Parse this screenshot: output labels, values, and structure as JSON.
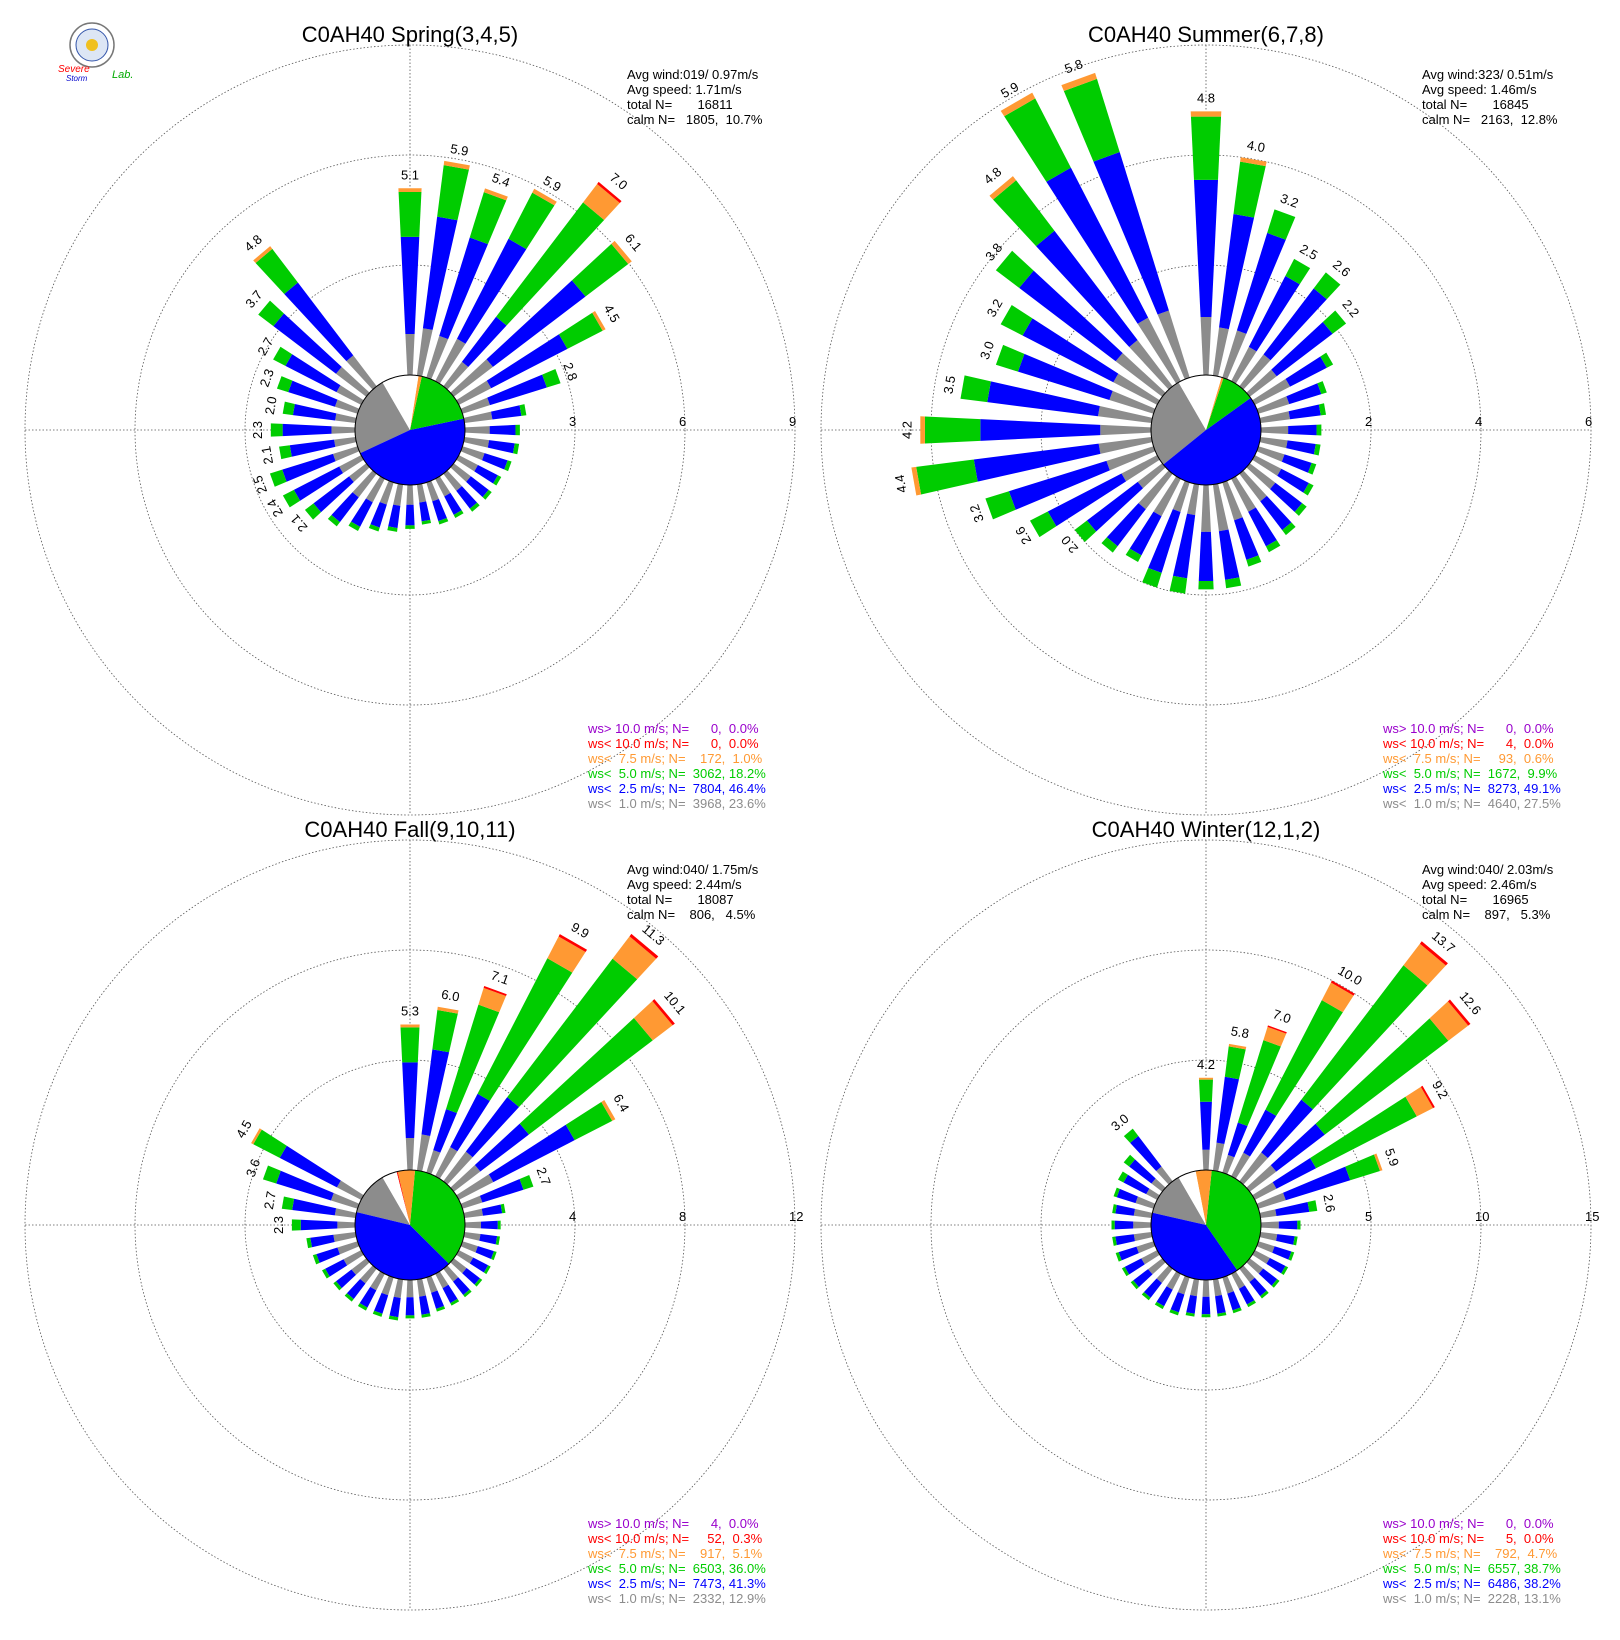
{
  "logo": {
    "text_top": "Severe",
    "text_bottom": "Storm",
    "text_lab": "Lab."
  },
  "colors": {
    "gray": "#8c8c8c",
    "blue": "#0000ff",
    "green": "#00cc00",
    "orange": "#ff9933",
    "red": "#ff0000",
    "purple": "#9900cc",
    "white": "#ffffff"
  },
  "chart_data": [
    {
      "type": "wind-rose",
      "title": "C0AH40 Spring(3,4,5)",
      "radial_max": 9,
      "ring_ticks": [
        "3",
        "6",
        "9"
      ],
      "stats": [
        "Avg wind:019/ 0.97m/s",
        "Avg speed: 1.71m/s",
        "total N=       16811",
        "calm N=   1805,  10.7%"
      ],
      "legend": [
        {
          "text": "ws> 10.0 m/s; N=      0,  0.0%",
          "color": "#9900cc"
        },
        {
          "text": "ws< 10.0 m/s; N=      0,  0.0%",
          "color": "#ff0000"
        },
        {
          "text": "ws<  7.5 m/s; N=    172,  1.0%",
          "color": "#ff9933"
        },
        {
          "text": "ws<  5.0 m/s; N=  3062, 18.2%",
          "color": "#00cc00"
        },
        {
          "text": "ws<  2.5 m/s; N=  7804, 46.4%",
          "color": "#0000ff"
        },
        {
          "text": "ws<  1.0 m/s; N=  3968, 23.6%",
          "color": "#8c8c8c"
        }
      ],
      "pie_fractions": [
        0.236,
        0.464,
        0.182,
        0.01,
        0.0,
        0.0
      ],
      "petal_totals": [
        5.1,
        5.9,
        5.4,
        5.9,
        7.0,
        6.1,
        4.5,
        2.8,
        1.7,
        1.5,
        1.5,
        1.4,
        1.3,
        1.3,
        1.3,
        1.2,
        1.2,
        1.1,
        1.2,
        1.3,
        1.4,
        1.6,
        1.8,
        2.1,
        2.4,
        2.5,
        2.1,
        2.3,
        2.0,
        2.3,
        2.7,
        3.7,
        4.8
      ],
      "labeled_petals": [
        0,
        1,
        2,
        3,
        4,
        5,
        6,
        7,
        23,
        24,
        25,
        26,
        27,
        28,
        29,
        30,
        31,
        32
      ],
      "petal_labels": [
        "5.1",
        "5.9",
        "5.4",
        "5.9",
        "7.0",
        "6.1",
        "4.5",
        "2.8",
        "2.1",
        "2.4",
        "2.5",
        "2.1",
        "2.3",
        "2.0",
        "2.3",
        "2.7",
        "3.7",
        "4.8"
      ]
    },
    {
      "type": "wind-rose",
      "title": "C0AH40 Summer(6,7,8)",
      "radial_max": 6,
      "ring_ticks": [
        "2",
        "4",
        "6"
      ],
      "stats": [
        "Avg wind:323/ 0.51m/s",
        "Avg speed: 1.46m/s",
        "total N=       16845",
        "calm N=   2163,  12.8%"
      ],
      "legend": [
        {
          "text": "ws> 10.0 m/s; N=      0,  0.0%",
          "color": "#9900cc"
        },
        {
          "text": "ws< 10.0 m/s; N=      4,  0.0%",
          "color": "#ff0000"
        },
        {
          "text": "ws<  7.5 m/s; N=     93,  0.6%",
          "color": "#ff9933"
        },
        {
          "text": "ws<  5.0 m/s; N=  1672,  9.9%",
          "color": "#00cc00"
        },
        {
          "text": "ws<  2.5 m/s; N=  8273, 49.1%",
          "color": "#0000ff"
        },
        {
          "text": "ws<  1.0 m/s; N=  4640, 27.5%",
          "color": "#8c8c8c"
        }
      ],
      "pie_fractions": [
        0.275,
        0.491,
        0.099,
        0.006,
        0.0,
        0.0
      ],
      "petal_totals": [
        4.8,
        4.0,
        3.2,
        2.5,
        2.6,
        2.2,
        1.6,
        1.3,
        1.2,
        1.1,
        1.1,
        1.1,
        1.2,
        1.3,
        1.4,
        1.5,
        1.6,
        1.9,
        1.9,
        2.0,
        2.0,
        1.7,
        1.8,
        2.0,
        2.6,
        3.2,
        4.4,
        4.2,
        3.5,
        3.0,
        3.2,
        3.8,
        4.8,
        5.9,
        5.8
      ],
      "labeled_petals": [
        0,
        1,
        2,
        3,
        4,
        5,
        23,
        24,
        25,
        26,
        27,
        28,
        29,
        30,
        31,
        32,
        33,
        34
      ],
      "petal_labels": [
        "4.8",
        "4.0",
        "3.2",
        "2.5",
        "2.6",
        "2.2",
        "2.0",
        "2.6",
        "3.2",
        "4.4",
        "4.2",
        "3.5",
        "3.0",
        "3.2",
        "3.8",
        "4.8",
        "5.9",
        "5.8"
      ]
    },
    {
      "type": "wind-rose",
      "title": "C0AH40 Fall(9,10,11)",
      "radial_max": 12,
      "ring_ticks": [
        "4",
        "8",
        "12"
      ],
      "stats": [
        "Avg wind:040/ 1.75m/s",
        "Avg speed: 2.44m/s",
        "total N=       18087",
        "calm N=    806,   4.5%"
      ],
      "legend": [
        {
          "text": "ws> 10.0 m/s; N=      4,  0.0%",
          "color": "#9900cc"
        },
        {
          "text": "ws< 10.0 m/s; N=     52,  0.3%",
          "color": "#ff0000"
        },
        {
          "text": "ws<  7.5 m/s; N=    917,  5.1%",
          "color": "#ff9933"
        },
        {
          "text": "ws<  5.0 m/s; N=  6503, 36.0%",
          "color": "#00cc00"
        },
        {
          "text": "ws<  2.5 m/s; N=  7473, 41.3%",
          "color": "#0000ff"
        },
        {
          "text": "ws<  1.0 m/s; N=  2332, 12.9%",
          "color": "#8c8c8c"
        }
      ],
      "pie_fractions": [
        0.129,
        0.413,
        0.36,
        0.051,
        0.003,
        0.0
      ],
      "petal_totals": [
        5.3,
        6.0,
        7.1,
        9.9,
        11.3,
        10.1,
        6.4,
        2.7,
        1.5,
        1.3,
        1.3,
        1.3,
        1.3,
        1.3,
        1.3,
        1.3,
        1.3,
        1.4,
        1.4,
        1.5,
        1.5,
        1.5,
        1.5,
        1.5,
        1.6,
        1.7,
        1.8,
        2.3,
        2.7,
        3.6,
        4.5
      ],
      "labeled_petals": [
        0,
        1,
        2,
        3,
        4,
        5,
        6,
        7,
        27,
        28,
        29,
        30
      ],
      "petal_labels": [
        "5.3",
        "6.0",
        "7.1",
        "9.9",
        "11.3",
        "10.1",
        "6.4",
        "2.7",
        "2.3",
        "2.7",
        "3.6",
        "4.5"
      ]
    },
    {
      "type": "wind-rose",
      "title": "C0AH40 Winter(12,1,2)",
      "radial_max": 15,
      "ring_ticks": [
        "5",
        "10",
        "15"
      ],
      "stats": [
        "Avg wind:040/ 2.03m/s",
        "Avg speed: 2.46m/s",
        "total N=       16965",
        "calm N=    897,   5.3%"
      ],
      "legend": [
        {
          "text": "ws> 10.0 m/s; N=      0,  0.0%",
          "color": "#9900cc"
        },
        {
          "text": "ws< 10.0 m/s; N=      5,  0.0%",
          "color": "#ff0000"
        },
        {
          "text": "ws<  7.5 m/s; N=    792,  4.7%",
          "color": "#ff9933"
        },
        {
          "text": "ws<  5.0 m/s; N=  6557, 38.7%",
          "color": "#00cc00"
        },
        {
          "text": "ws<  2.5 m/s; N=  6486, 38.2%",
          "color": "#0000ff"
        },
        {
          "text": "ws<  1.0 m/s; N=  2228, 13.1%",
          "color": "#8c8c8c"
        }
      ],
      "pie_fractions": [
        0.131,
        0.382,
        0.387,
        0.047,
        0.0,
        0.0
      ],
      "petal_totals": [
        4.2,
        5.8,
        7.0,
        10.0,
        13.7,
        12.6,
        9.2,
        5.9,
        2.6,
        1.8,
        1.7,
        1.7,
        1.7,
        1.7,
        1.7,
        1.7,
        1.7,
        1.7,
        1.7,
        1.7,
        1.8,
        1.8,
        1.8,
        1.8,
        1.8,
        1.8,
        1.8,
        1.8,
        1.8,
        1.9,
        2.0,
        2.2,
        3.0
      ],
      "labeled_petals": [
        0,
        1,
        2,
        3,
        4,
        5,
        6,
        7,
        8,
        32
      ],
      "petal_labels": [
        "4.2",
        "5.8",
        "7.0",
        "10.0",
        "13.7",
        "12.6",
        "9.2",
        "5.9",
        "2.6",
        "3.0"
      ]
    }
  ]
}
